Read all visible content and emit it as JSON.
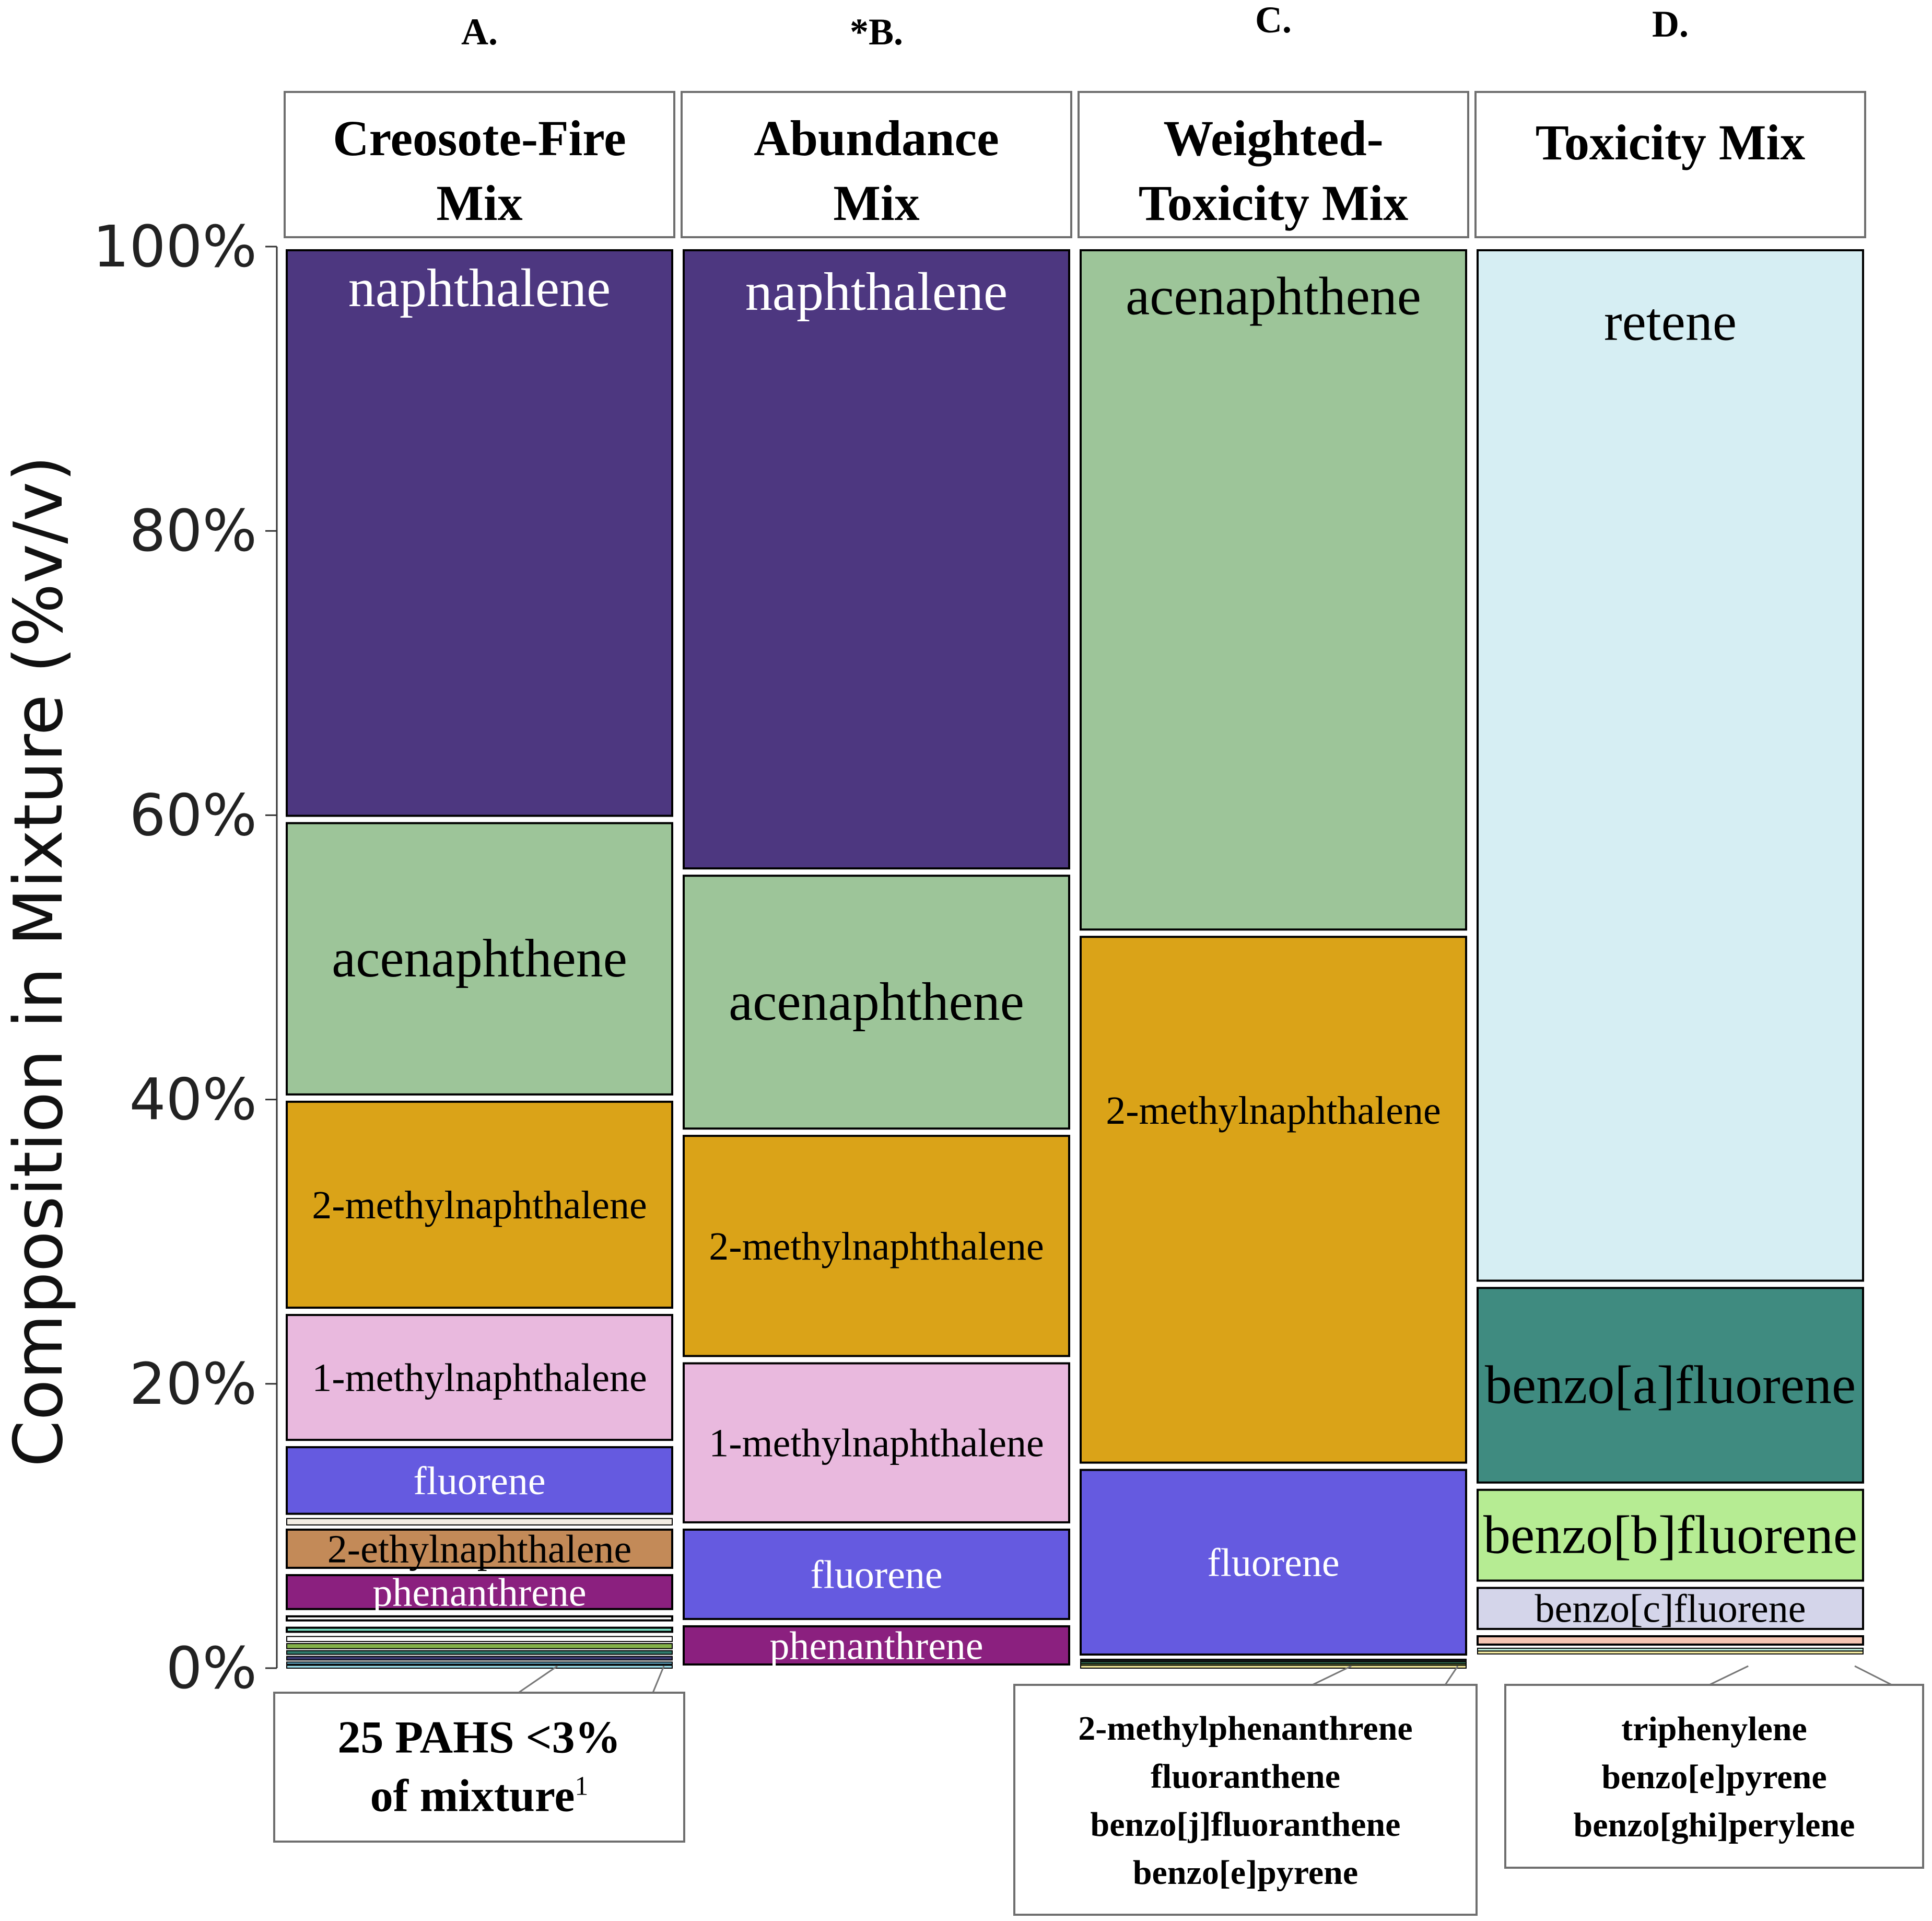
{
  "chart_data": {
    "type": "bar",
    "subtype": "stacked-100-percent",
    "ylabel": "Composition in Mixture (%v/v)",
    "ylim": [
      0,
      100
    ],
    "yticks": [
      0,
      20,
      40,
      60,
      80,
      100
    ],
    "ytick_labels": [
      "0%",
      "20%",
      "40%",
      "60%",
      "80%",
      "100%"
    ],
    "panels": [
      {
        "letter": "A.",
        "title": [
          "Creosote-Fire",
          "Mix"
        ],
        "segments": [
          {
            "name": "naphthalene",
            "value": 40.3,
            "color": "#4d3780",
            "label_color": "#ffffff",
            "label_size": "large"
          },
          {
            "name": "acenaphthene",
            "value": 19.6,
            "color": "#9dc599",
            "label_color": "#000000",
            "label_size": "large"
          },
          {
            "name": "2-methylnaphthalene",
            "value": 15.0,
            "color": "#daa318",
            "label_color": "#000000",
            "label_size": "medium"
          },
          {
            "name": "1-methylnaphthalene",
            "value": 9.3,
            "color": "#e9b9de",
            "label_color": "#000000",
            "label_size": "medium"
          },
          {
            "name": "fluorene",
            "value": 5.2,
            "color": "#655ae0",
            "label_color": "#ffffff",
            "label_size": "medium"
          },
          {
            "name": "",
            "value": 0.6,
            "color": "#f3ede3",
            "label_color": "#000000",
            "label_size": "none"
          },
          {
            "name": "2-ethylnaphthalene",
            "value": 3.2,
            "color": "#c38a58",
            "label_color": "#000000",
            "label_size": "medium"
          },
          {
            "name": "phenanthrene",
            "value": 2.9,
            "color": "#8b207f",
            "label_color": "#ffffff",
            "label_size": "medium"
          },
          {
            "name": "",
            "value": 0.8,
            "color": "#ffffff",
            "label_color": "#000000",
            "label_size": "none"
          },
          {
            "name": "",
            "value": 0.8,
            "color": "#7ee8cb",
            "label_color": "#000000",
            "label_size": "none"
          },
          {
            "name": "",
            "value": 0.5,
            "color": "#ffffff",
            "label_color": "#000000",
            "label_size": "none"
          },
          {
            "name": "",
            "value": 0.5,
            "color": "#84b24a",
            "label_color": "#000000",
            "label_size": "none"
          },
          {
            "name": "",
            "value": 0.4,
            "color": "#2f7a6c",
            "label_color": "#000000",
            "label_size": "none"
          },
          {
            "name": "",
            "value": 0.4,
            "color": "#3a3a70",
            "label_color": "#000000",
            "label_size": "none"
          },
          {
            "name": "",
            "value": 0.3,
            "color": "#6fbfe0",
            "label_color": "#000000",
            "label_size": "none"
          },
          {
            "name": "",
            "value": 0.2,
            "color": "#a0e2ef",
            "label_color": "#000000",
            "label_size": "none"
          }
        ]
      },
      {
        "letter": "*B.",
        "title": [
          "Abundance",
          "Mix"
        ],
        "segments": [
          {
            "name": "naphthalene",
            "value": 44.0,
            "color": "#4d3780",
            "label_color": "#ffffff",
            "label_size": "large"
          },
          {
            "name": "acenaphthene",
            "value": 18.3,
            "color": "#9dc599",
            "label_color": "#000000",
            "label_size": "large"
          },
          {
            "name": "2-methylnaphthalene",
            "value": 16.0,
            "color": "#daa318",
            "label_color": "#000000",
            "label_size": "medium"
          },
          {
            "name": "1-methylnaphthalene",
            "value": 11.7,
            "color": "#e9b9de",
            "label_color": "#000000",
            "label_size": "medium"
          },
          {
            "name": "fluorene",
            "value": 6.8,
            "color": "#655ae0",
            "label_color": "#ffffff",
            "label_size": "medium"
          },
          {
            "name": "phenanthrene",
            "value": 3.2,
            "color": "#8b207f",
            "label_color": "#ffffff",
            "label_size": "medium"
          }
        ]
      },
      {
        "letter": "C.",
        "title": [
          "Weighted-",
          "Toxicity Mix"
        ],
        "segments": [
          {
            "name": "acenaphthene",
            "value": 48.3,
            "color": "#9dc599",
            "label_color": "#000000",
            "label_size": "large"
          },
          {
            "name": "2-methylnaphthalene",
            "value": 37.5,
            "color": "#daa318",
            "label_color": "#000000",
            "label_size": "medium"
          },
          {
            "name": "fluorene",
            "value": 13.5,
            "color": "#655ae0",
            "label_color": "#ffffff",
            "label_size": "medium"
          },
          {
            "name": "",
            "value": 0.25,
            "color": "#2b2f3a",
            "label_color": "#000000",
            "label_size": "none"
          },
          {
            "name": "",
            "value": 0.15,
            "color": "#3a7a5c",
            "label_color": "#000000",
            "label_size": "none"
          },
          {
            "name": "",
            "value": 0.1,
            "color": "#cfe86b",
            "label_color": "#000000",
            "label_size": "none"
          },
          {
            "name": "",
            "value": 0.2,
            "color": "#f1e99a",
            "label_color": "#000000",
            "label_size": "none"
          }
        ]
      },
      {
        "letter": "D.",
        "title": [
          "Toxicity Mix"
        ],
        "segments": [
          {
            "name": "retene",
            "value": 73.0,
            "color": "#d6eef3",
            "label_color": "#000000",
            "label_size": "large"
          },
          {
            "name": "benzo[a]fluorene",
            "value": 14.2,
            "color": "#3f8b80",
            "label_color": "#000000",
            "label_size": "large"
          },
          {
            "name": "benzo[b]fluorene",
            "value": 6.9,
            "color": "#b6ec93",
            "label_color": "#000000",
            "label_size": "large"
          },
          {
            "name": "benzo[c]fluorene",
            "value": 3.4,
            "color": "#d4d5ea",
            "label_color": "#000000",
            "label_size": "medium"
          },
          {
            "name": "",
            "value": 1.1,
            "color": "#f6c6b3",
            "label_color": "#000000",
            "label_size": "none"
          },
          {
            "name": "",
            "value": 0.2,
            "color": "#b6e7d3",
            "label_color": "#000000",
            "label_size": "none"
          },
          {
            "name": "",
            "value": 0.2,
            "color": "#fff6a8",
            "label_color": "#000000",
            "label_size": "none"
          }
        ]
      }
    ],
    "annotations": [
      {
        "panel": 0,
        "lines": [
          "25 PAHS <3%",
          "of mixture"
        ],
        "superscript": "1",
        "bold_size": "large"
      },
      {
        "panel": 2,
        "lines": [
          "2-methylphenanthrene",
          "fluoranthene",
          "benzo[j]fluoranthene",
          "benzo[e]pyrene"
        ],
        "superscript": "",
        "bold_size": "small"
      },
      {
        "panel": 3,
        "lines": [
          "triphenylene",
          "benzo[e]pyrene",
          "benzo[ghi]perylene"
        ],
        "superscript": "",
        "bold_size": "small"
      }
    ]
  }
}
